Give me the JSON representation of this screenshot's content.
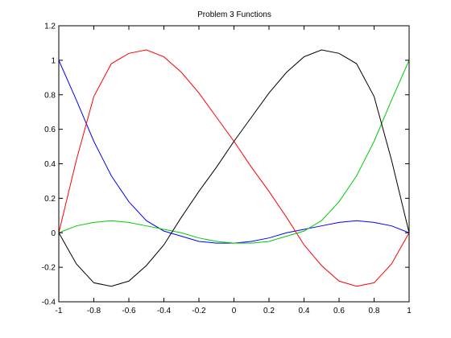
{
  "chart_data": {
    "type": "line",
    "title": "Problem 3 Functions",
    "xlabel": "",
    "ylabel": "",
    "xlim": [
      -1,
      1
    ],
    "ylim": [
      -0.4,
      1.2
    ],
    "grid": false,
    "x_ticks": [
      -1,
      -0.8,
      -0.6,
      -0.4,
      -0.2,
      0,
      0.2,
      0.4,
      0.6,
      0.8,
      1
    ],
    "x_tick_labels": [
      "-1",
      "-0.8",
      "-0.6",
      "-0.4",
      "-0.2",
      "0",
      "0.2",
      "0.4",
      "0.6",
      "0.8",
      "1"
    ],
    "y_ticks": [
      -0.4,
      -0.2,
      0,
      0.2,
      0.4,
      0.6,
      0.8,
      1,
      1.2
    ],
    "y_tick_labels": [
      "-0.4",
      "-0.2",
      "0",
      "0.2",
      "0.4",
      "0.6",
      "0.8",
      "1",
      "1.2"
    ],
    "x": [
      -1,
      -0.9,
      -0.8,
      -0.7,
      -0.6,
      -0.5,
      -0.4,
      -0.3,
      -0.2,
      -0.1,
      0,
      0.1,
      0.2,
      0.3,
      0.4,
      0.5,
      0.6,
      0.7,
      0.8,
      0.9,
      1
    ],
    "series": [
      {
        "color": "#0000ff",
        "values": [
          1.0,
          0.77,
          0.53,
          0.33,
          0.18,
          0.07,
          0.01,
          -0.02,
          -0.05,
          -0.06,
          -0.06,
          -0.05,
          -0.03,
          0.0,
          0.02,
          0.04,
          0.06,
          0.07,
          0.06,
          0.04,
          0.0
        ]
      },
      {
        "color": "#ff0000",
        "values": [
          0.0,
          0.42,
          0.79,
          0.98,
          1.04,
          1.06,
          1.02,
          0.93,
          0.81,
          0.67,
          0.53,
          0.38,
          0.24,
          0.09,
          -0.07,
          -0.19,
          -0.28,
          -0.31,
          -0.29,
          -0.18,
          0.0
        ]
      },
      {
        "color": "#00cc00",
        "values": [
          0.0,
          0.04,
          0.06,
          0.07,
          0.06,
          0.04,
          0.02,
          0.0,
          -0.03,
          -0.05,
          -0.06,
          -0.06,
          -0.05,
          -0.02,
          0.01,
          0.07,
          0.18,
          0.33,
          0.53,
          0.77,
          1.0
        ]
      },
      {
        "color": "#000000",
        "values": [
          0.0,
          -0.18,
          -0.29,
          -0.31,
          -0.28,
          -0.19,
          -0.07,
          0.09,
          0.24,
          0.38,
          0.53,
          0.67,
          0.81,
          0.93,
          1.02,
          1.06,
          1.04,
          0.98,
          0.79,
          0.42,
          0.0
        ]
      }
    ]
  }
}
